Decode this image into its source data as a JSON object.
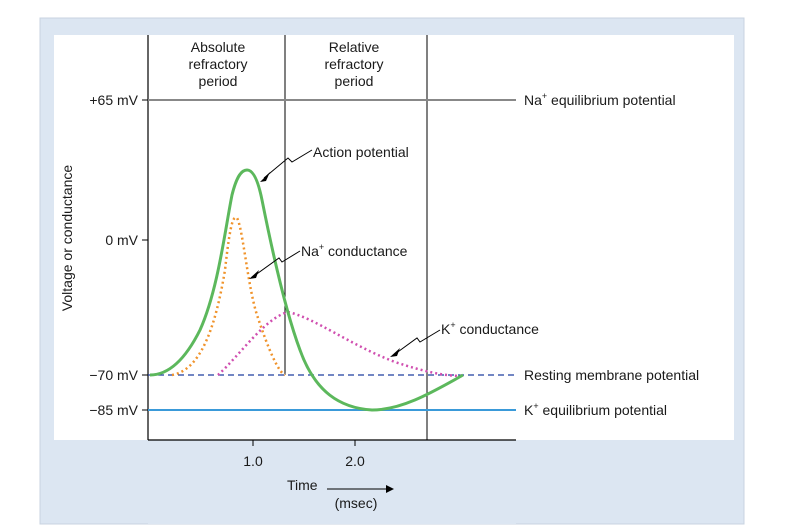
{
  "figure": {
    "y_axis_label": "Voltage or conductance",
    "x_axis_label": "Time",
    "x_axis_unit": "(msec)",
    "x_ticks": [
      "1.0",
      "2.0"
    ],
    "y_ticks": [
      "+65 mV",
      "0 mV",
      "−70 mV",
      "−85 mV"
    ],
    "periods": {
      "absolute": [
        "Absolute",
        "refractory",
        "period"
      ],
      "relative": [
        "Relative",
        "refractory",
        "period"
      ]
    },
    "levels": {
      "na_eq": {
        "prefix": "Na",
        "sup": "+",
        "suffix": " equilibrium potential"
      },
      "resting": "Resting membrane potential",
      "k_eq": {
        "prefix": "K",
        "sup": "+",
        "suffix": " equilibrium potential"
      }
    },
    "curves": {
      "action": "Action potential",
      "na_cond": {
        "prefix": "Na",
        "sup": "+",
        "suffix": " conductance"
      },
      "k_cond": {
        "prefix": "K",
        "sup": "+",
        "suffix": " conductance"
      }
    },
    "colors": {
      "panel_bg": "#dce6f2",
      "action_potential": "#5cb85c",
      "na_conductance": "#f0932b",
      "k_conductance": "#d04fb0",
      "resting_line": "#1f3f9f",
      "k_eq_line": "#3a9ad9",
      "na_eq_line": "#888888"
    }
  }
}
